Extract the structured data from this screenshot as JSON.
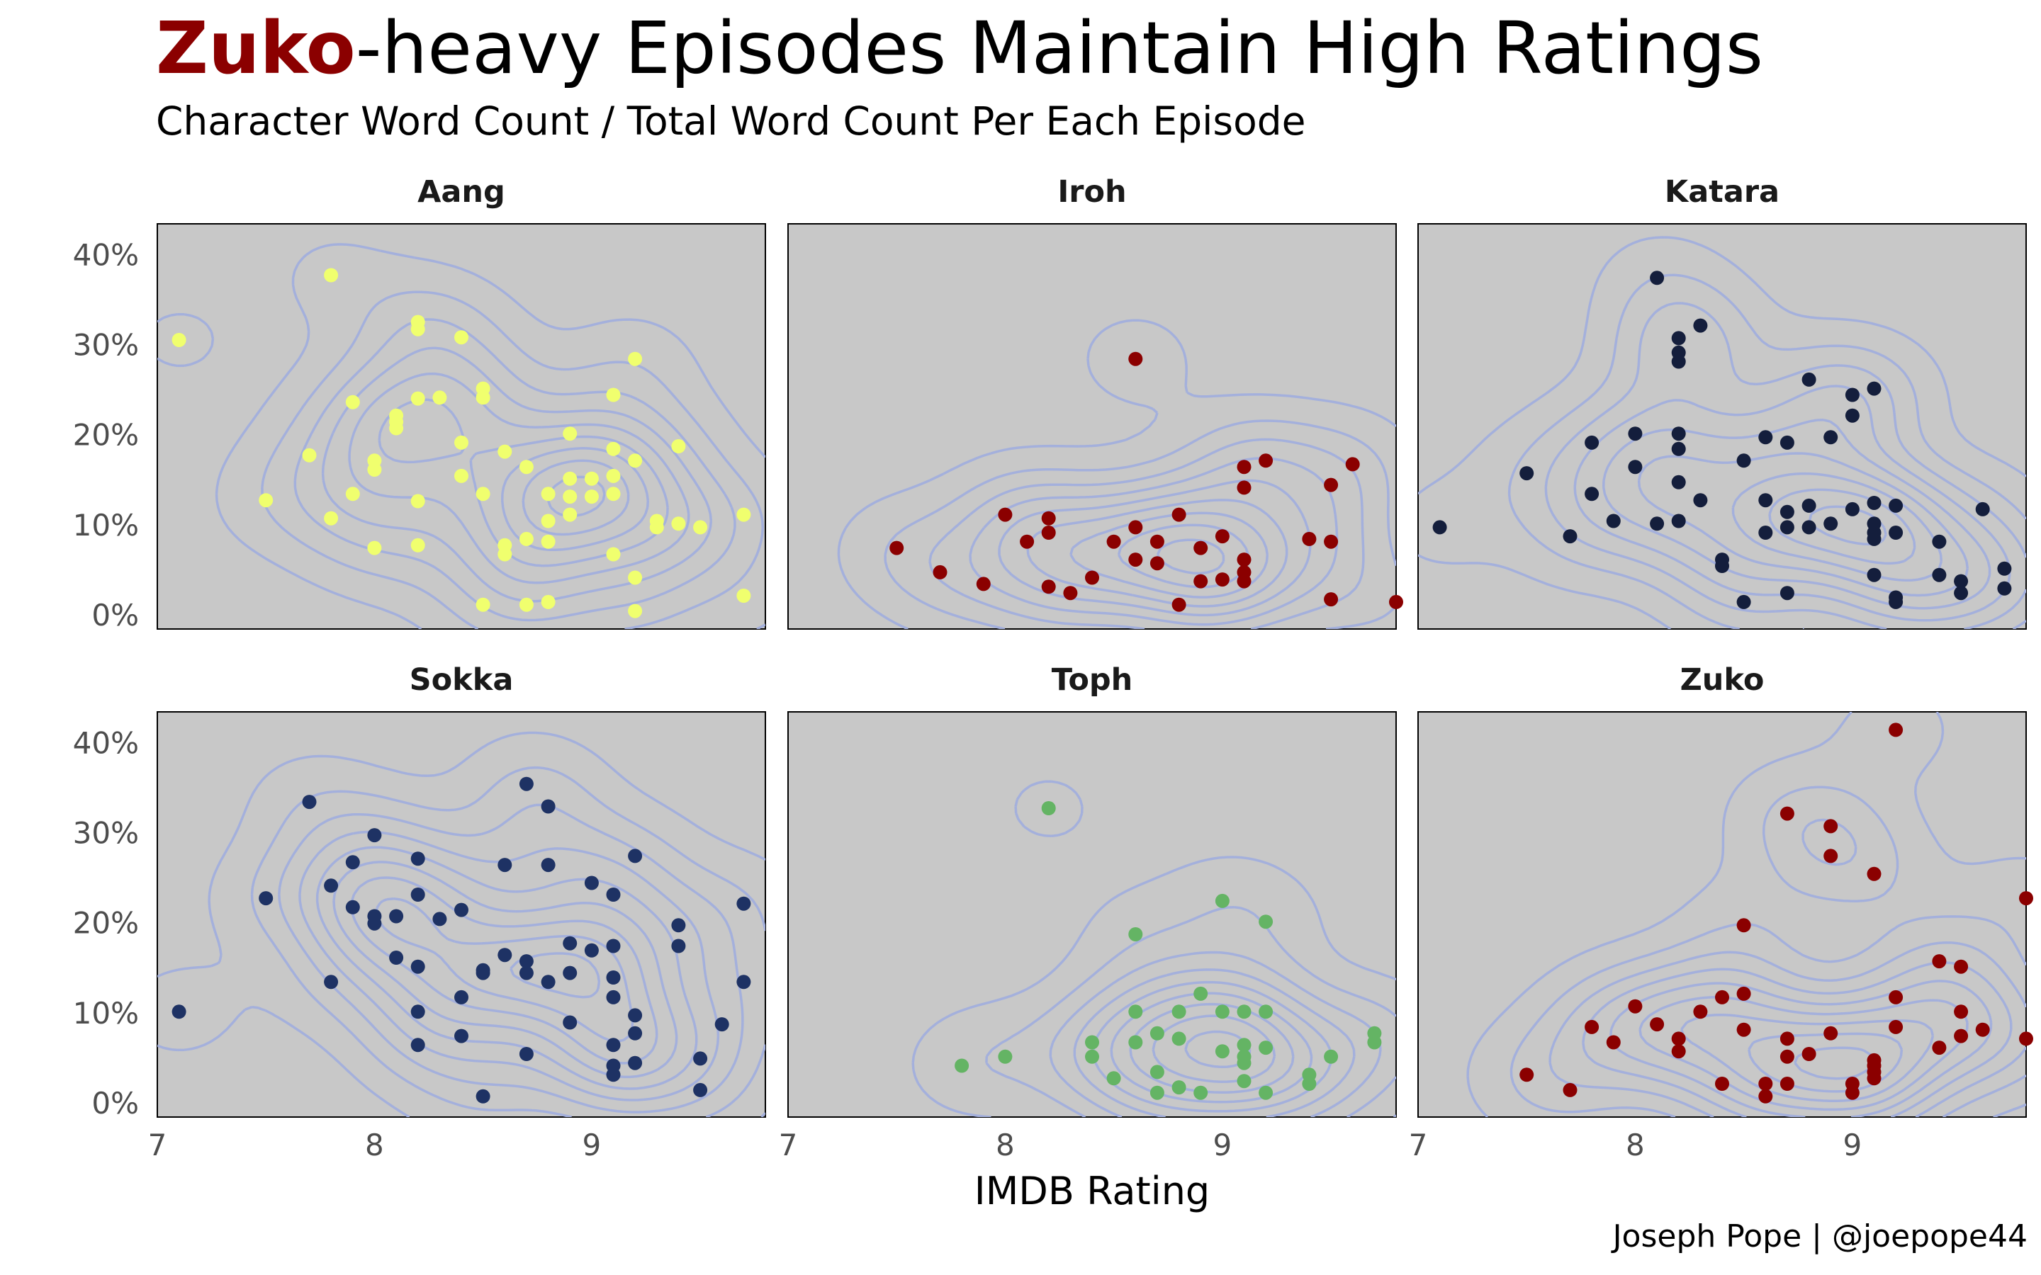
{
  "title": {
    "highlight": "Zuko",
    "rest": "-heavy Episodes Maintain High Ratings"
  },
  "subtitle": "Character Word Count / Total Word Count Per Each Episode",
  "caption": "Joseph Pope | @joepope44",
  "chart_data": {
    "type": "scatter",
    "xlabel": "IMDB Rating",
    "ylabel": "",
    "xlim": [
      7.0,
      9.8
    ],
    "ylim": [
      -0.015,
      0.435
    ],
    "x_ticks": [
      7,
      8,
      9
    ],
    "x_tick_labels": [
      "7",
      "8",
      "9"
    ],
    "y_ticks": [
      0,
      0.1,
      0.2,
      0.3,
      0.4
    ],
    "y_tick_labels": [
      "0%",
      "10%",
      "20%",
      "30%",
      "40%"
    ],
    "panel_background": "#c8c8c8",
    "density_contour_color": "#a4b0dc",
    "facets": [
      {
        "name": "Aang",
        "color": "#f0ff6e",
        "points": [
          [
            7.1,
            0.306
          ],
          [
            7.5,
            0.128
          ],
          [
            7.7,
            0.178
          ],
          [
            7.8,
            0.378
          ],
          [
            7.8,
            0.108
          ],
          [
            7.9,
            0.237
          ],
          [
            7.9,
            0.135
          ],
          [
            8.0,
            0.172
          ],
          [
            8.0,
            0.162
          ],
          [
            8.0,
            0.075
          ],
          [
            8.1,
            0.222
          ],
          [
            8.1,
            0.215
          ],
          [
            8.1,
            0.208
          ],
          [
            8.2,
            0.326
          ],
          [
            8.2,
            0.318
          ],
          [
            8.2,
            0.241
          ],
          [
            8.2,
            0.127
          ],
          [
            8.2,
            0.078
          ],
          [
            8.3,
            0.242
          ],
          [
            8.4,
            0.309
          ],
          [
            8.4,
            0.192
          ],
          [
            8.4,
            0.155
          ],
          [
            8.5,
            0.252
          ],
          [
            8.5,
            0.242
          ],
          [
            8.5,
            0.135
          ],
          [
            8.5,
            0.012
          ],
          [
            8.6,
            0.182
          ],
          [
            8.6,
            0.078
          ],
          [
            8.6,
            0.068
          ],
          [
            8.7,
            0.165
          ],
          [
            8.7,
            0.085
          ],
          [
            8.7,
            0.012
          ],
          [
            8.8,
            0.135
          ],
          [
            8.8,
            0.105
          ],
          [
            8.8,
            0.082
          ],
          [
            8.8,
            0.015
          ],
          [
            8.9,
            0.202
          ],
          [
            8.9,
            0.152
          ],
          [
            8.9,
            0.132
          ],
          [
            8.9,
            0.112
          ],
          [
            9.0,
            0.152
          ],
          [
            9.0,
            0.132
          ],
          [
            9.1,
            0.245
          ],
          [
            9.1,
            0.185
          ],
          [
            9.1,
            0.155
          ],
          [
            9.1,
            0.135
          ],
          [
            9.1,
            0.068
          ],
          [
            9.2,
            0.285
          ],
          [
            9.2,
            0.172
          ],
          [
            9.2,
            0.042
          ],
          [
            9.2,
            0.005
          ],
          [
            9.3,
            0.105
          ],
          [
            9.3,
            0.098
          ],
          [
            9.4,
            0.188
          ],
          [
            9.4,
            0.102
          ],
          [
            9.5,
            0.098
          ],
          [
            9.7,
            0.112
          ],
          [
            9.7,
            0.022
          ]
        ]
      },
      {
        "name": "Iroh",
        "color": "#8b0000",
        "points": [
          [
            7.5,
            0.075
          ],
          [
            7.7,
            0.048
          ],
          [
            7.9,
            0.035
          ],
          [
            8.0,
            0.112
          ],
          [
            8.1,
            0.082
          ],
          [
            8.2,
            0.108
          ],
          [
            8.2,
            0.092
          ],
          [
            8.2,
            0.032
          ],
          [
            8.3,
            0.025
          ],
          [
            8.4,
            0.042
          ],
          [
            8.5,
            0.082
          ],
          [
            8.6,
            0.285
          ],
          [
            8.6,
            0.098
          ],
          [
            8.6,
            0.062
          ],
          [
            8.7,
            0.082
          ],
          [
            8.7,
            0.058
          ],
          [
            8.8,
            0.112
          ],
          [
            8.8,
            0.012
          ],
          [
            8.9,
            0.075
          ],
          [
            8.9,
            0.038
          ],
          [
            9.0,
            0.088
          ],
          [
            9.0,
            0.04
          ],
          [
            9.1,
            0.165
          ],
          [
            9.1,
            0.142
          ],
          [
            9.1,
            0.062
          ],
          [
            9.1,
            0.048
          ],
          [
            9.1,
            0.038
          ],
          [
            9.2,
            0.172
          ],
          [
            9.4,
            0.085
          ],
          [
            9.5,
            0.145
          ],
          [
            9.5,
            0.082
          ],
          [
            9.5,
            0.018
          ],
          [
            9.6,
            0.168
          ],
          [
            9.8,
            0.015
          ]
        ]
      },
      {
        "name": "Katara",
        "color": "#141e3c",
        "points": [
          [
            7.1,
            0.098
          ],
          [
            7.5,
            0.158
          ],
          [
            7.7,
            0.088
          ],
          [
            7.8,
            0.192
          ],
          [
            7.8,
            0.135
          ],
          [
            7.9,
            0.105
          ],
          [
            8.0,
            0.202
          ],
          [
            8.0,
            0.165
          ],
          [
            8.1,
            0.375
          ],
          [
            8.1,
            0.102
          ],
          [
            8.2,
            0.308
          ],
          [
            8.2,
            0.292
          ],
          [
            8.2,
            0.282
          ],
          [
            8.2,
            0.202
          ],
          [
            8.2,
            0.185
          ],
          [
            8.2,
            0.148
          ],
          [
            8.2,
            0.105
          ],
          [
            8.3,
            0.322
          ],
          [
            8.3,
            0.128
          ],
          [
            8.4,
            0.062
          ],
          [
            8.4,
            0.055
          ],
          [
            8.5,
            0.172
          ],
          [
            8.5,
            0.015
          ],
          [
            8.6,
            0.198
          ],
          [
            8.6,
            0.128
          ],
          [
            8.6,
            0.092
          ],
          [
            8.7,
            0.192
          ],
          [
            8.7,
            0.115
          ],
          [
            8.7,
            0.098
          ],
          [
            8.7,
            0.025
          ],
          [
            8.8,
            0.262
          ],
          [
            8.8,
            0.122
          ],
          [
            8.8,
            0.098
          ],
          [
            8.9,
            0.198
          ],
          [
            8.9,
            0.102
          ],
          [
            9.0,
            0.245
          ],
          [
            9.0,
            0.222
          ],
          [
            9.0,
            0.118
          ],
          [
            9.1,
            0.252
          ],
          [
            9.1,
            0.125
          ],
          [
            9.1,
            0.102
          ],
          [
            9.1,
            0.092
          ],
          [
            9.1,
            0.085
          ],
          [
            9.1,
            0.045
          ],
          [
            9.2,
            0.122
          ],
          [
            9.2,
            0.092
          ],
          [
            9.2,
            0.02
          ],
          [
            9.2,
            0.015
          ],
          [
            9.4,
            0.082
          ],
          [
            9.4,
            0.045
          ],
          [
            9.5,
            0.038
          ],
          [
            9.5,
            0.025
          ],
          [
            9.6,
            0.118
          ],
          [
            9.7,
            0.052
          ],
          [
            9.7,
            0.03
          ]
        ]
      },
      {
        "name": "Sokka",
        "color": "#1e3264",
        "points": [
          [
            7.1,
            0.102
          ],
          [
            7.5,
            0.228
          ],
          [
            7.7,
            0.335
          ],
          [
            7.8,
            0.242
          ],
          [
            7.8,
            0.135
          ],
          [
            7.9,
            0.268
          ],
          [
            7.9,
            0.218
          ],
          [
            8.0,
            0.298
          ],
          [
            8.0,
            0.208
          ],
          [
            8.0,
            0.2
          ],
          [
            8.1,
            0.208
          ],
          [
            8.1,
            0.162
          ],
          [
            8.2,
            0.272
          ],
          [
            8.2,
            0.232
          ],
          [
            8.2,
            0.152
          ],
          [
            8.2,
            0.102
          ],
          [
            8.2,
            0.065
          ],
          [
            8.3,
            0.205
          ],
          [
            8.4,
            0.215
          ],
          [
            8.4,
            0.118
          ],
          [
            8.4,
            0.075
          ],
          [
            8.5,
            0.148
          ],
          [
            8.5,
            0.145
          ],
          [
            8.5,
            0.008
          ],
          [
            8.6,
            0.265
          ],
          [
            8.6,
            0.165
          ],
          [
            8.7,
            0.355
          ],
          [
            8.7,
            0.158
          ],
          [
            8.7,
            0.145
          ],
          [
            8.7,
            0.055
          ],
          [
            8.8,
            0.33
          ],
          [
            8.8,
            0.265
          ],
          [
            8.8,
            0.135
          ],
          [
            8.9,
            0.178
          ],
          [
            8.9,
            0.145
          ],
          [
            8.9,
            0.09
          ],
          [
            9.0,
            0.245
          ],
          [
            9.0,
            0.17
          ],
          [
            9.1,
            0.232
          ],
          [
            9.1,
            0.175
          ],
          [
            9.1,
            0.14
          ],
          [
            9.1,
            0.118
          ],
          [
            9.1,
            0.065
          ],
          [
            9.1,
            0.042
          ],
          [
            9.1,
            0.032
          ],
          [
            9.2,
            0.275
          ],
          [
            9.2,
            0.098
          ],
          [
            9.2,
            0.078
          ],
          [
            9.2,
            0.045
          ],
          [
            9.4,
            0.198
          ],
          [
            9.4,
            0.175
          ],
          [
            9.5,
            0.05
          ],
          [
            9.5,
            0.015
          ],
          [
            9.6,
            0.088
          ],
          [
            9.7,
            0.222
          ],
          [
            9.7,
            0.135
          ]
        ]
      },
      {
        "name": "Toph",
        "color": "#64b464",
        "points": [
          [
            7.8,
            0.042
          ],
          [
            8.0,
            0.052
          ],
          [
            8.2,
            0.328
          ],
          [
            8.4,
            0.068
          ],
          [
            8.4,
            0.052
          ],
          [
            8.5,
            0.028
          ],
          [
            8.6,
            0.188
          ],
          [
            8.6,
            0.102
          ],
          [
            8.6,
            0.068
          ],
          [
            8.7,
            0.078
          ],
          [
            8.7,
            0.035
          ],
          [
            8.7,
            0.012
          ],
          [
            8.8,
            0.102
          ],
          [
            8.8,
            0.072
          ],
          [
            8.8,
            0.018
          ],
          [
            8.9,
            0.122
          ],
          [
            8.9,
            0.012
          ],
          [
            9.0,
            0.225
          ],
          [
            9.0,
            0.102
          ],
          [
            9.0,
            0.058
          ],
          [
            9.1,
            0.102
          ],
          [
            9.1,
            0.065
          ],
          [
            9.1,
            0.052
          ],
          [
            9.1,
            0.045
          ],
          [
            9.1,
            0.025
          ],
          [
            9.2,
            0.202
          ],
          [
            9.2,
            0.102
          ],
          [
            9.2,
            0.062
          ],
          [
            9.2,
            0.012
          ],
          [
            9.4,
            0.032
          ],
          [
            9.4,
            0.022
          ],
          [
            9.5,
            0.052
          ],
          [
            9.7,
            0.078
          ],
          [
            9.7,
            0.068
          ]
        ]
      },
      {
        "name": "Zuko",
        "color": "#8b0000",
        "points": [
          [
            7.5,
            0.032
          ],
          [
            7.7,
            0.015
          ],
          [
            7.8,
            0.085
          ],
          [
            7.9,
            0.068
          ],
          [
            8.0,
            0.108
          ],
          [
            8.1,
            0.088
          ],
          [
            8.2,
            0.072
          ],
          [
            8.2,
            0.058
          ],
          [
            8.3,
            0.102
          ],
          [
            8.4,
            0.118
          ],
          [
            8.4,
            0.022
          ],
          [
            8.5,
            0.198
          ],
          [
            8.5,
            0.122
          ],
          [
            8.5,
            0.082
          ],
          [
            8.6,
            0.022
          ],
          [
            8.6,
            0.008
          ],
          [
            8.7,
            0.322
          ],
          [
            8.7,
            0.072
          ],
          [
            8.7,
            0.052
          ],
          [
            8.7,
            0.022
          ],
          [
            8.8,
            0.055
          ],
          [
            8.9,
            0.308
          ],
          [
            8.9,
            0.275
          ],
          [
            8.9,
            0.078
          ],
          [
            9.0,
            0.022
          ],
          [
            9.0,
            0.012
          ],
          [
            9.1,
            0.255
          ],
          [
            9.1,
            0.048
          ],
          [
            9.1,
            0.042
          ],
          [
            9.1,
            0.035
          ],
          [
            9.1,
            0.028
          ],
          [
            9.2,
            0.415
          ],
          [
            9.2,
            0.118
          ],
          [
            9.2,
            0.085
          ],
          [
            9.4,
            0.158
          ],
          [
            9.4,
            0.062
          ],
          [
            9.5,
            0.152
          ],
          [
            9.5,
            0.102
          ],
          [
            9.5,
            0.075
          ],
          [
            9.6,
            0.082
          ],
          [
            9.8,
            0.228
          ],
          [
            9.8,
            0.072
          ]
        ]
      }
    ]
  }
}
